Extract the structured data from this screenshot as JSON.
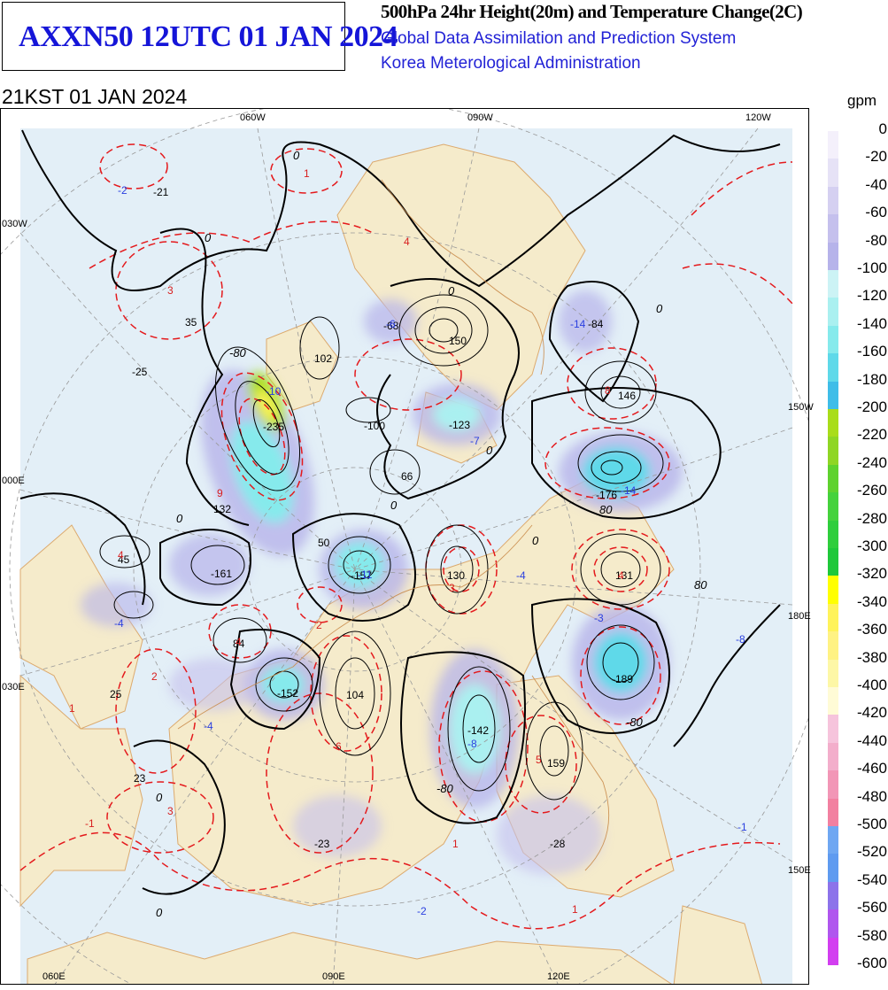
{
  "header": {
    "product": "AXXN50 12UTC 01 JAN 2024",
    "title": "500hPa 24hr Height(20m) and Temperature Change(2C)",
    "system": "Global Data Assimilation and Prediction System",
    "agency": "Korea Meterological Administration",
    "valid_time": "21KST 01 JAN 2024"
  },
  "legend": {
    "unit": "gpm",
    "items": [
      {
        "label": "0",
        "color": "#f4f0fb"
      },
      {
        "label": "-20",
        "color": "#e6e2f6"
      },
      {
        "label": "-40",
        "color": "#d5d0f1"
      },
      {
        "label": "-60",
        "color": "#c5c0ed"
      },
      {
        "label": "-80",
        "color": "#b6b3ea"
      },
      {
        "label": "-100",
        "color": "#ccf3f5"
      },
      {
        "label": "-120",
        "color": "#aaf0f0"
      },
      {
        "label": "-140",
        "color": "#86eaec"
      },
      {
        "label": "-160",
        "color": "#5fd9e9"
      },
      {
        "label": "-180",
        "color": "#3fbde8"
      },
      {
        "label": "-200",
        "color": "#a9dd1a"
      },
      {
        "label": "-220",
        "color": "#8fd624"
      },
      {
        "label": "-240",
        "color": "#5fd22e"
      },
      {
        "label": "-260",
        "color": "#45d23c"
      },
      {
        "label": "-280",
        "color": "#2fce3c"
      },
      {
        "label": "-300",
        "color": "#1fc83a"
      },
      {
        "label": "-320",
        "color": "#ffff00"
      },
      {
        "label": "-340",
        "color": "#fff35a"
      },
      {
        "label": "-360",
        "color": "#fff283"
      },
      {
        "label": "-380",
        "color": "#fdf7a6"
      },
      {
        "label": "-400",
        "color": "#fffbd6"
      },
      {
        "label": "-420",
        "color": "#f6c4dc"
      },
      {
        "label": "-440",
        "color": "#f3aecb"
      },
      {
        "label": "-460",
        "color": "#f296b6"
      },
      {
        "label": "-480",
        "color": "#f280a0"
      },
      {
        "label": "-500",
        "color": "#6fa7f2"
      },
      {
        "label": "-520",
        "color": "#5f9bf0"
      },
      {
        "label": "-540",
        "color": "#8c73ea"
      },
      {
        "label": "-560",
        "color": "#b056ee"
      },
      {
        "label": "-580",
        "color": "#d23ef0"
      },
      {
        "label": "-600",
        "color": "#ee24ee"
      }
    ]
  },
  "grid_labels": {
    "top": [
      "060W",
      "090W",
      "120W"
    ],
    "left": [
      "030W",
      "000E",
      "030E"
    ],
    "right": [
      "150W",
      "180E",
      "150E"
    ],
    "bottom": [
      "060E",
      "090E",
      "120E"
    ]
  },
  "height_centers": [
    {
      "v": "-21"
    },
    {
      "v": "35"
    },
    {
      "v": "-25"
    },
    {
      "v": "-235"
    },
    {
      "v": "102"
    },
    {
      "v": "-68"
    },
    {
      "v": "150"
    },
    {
      "v": "-84"
    },
    {
      "v": "146"
    },
    {
      "v": "-100"
    },
    {
      "v": "-123"
    },
    {
      "v": "66"
    },
    {
      "v": "-176"
    },
    {
      "v": "132"
    },
    {
      "v": "50"
    },
    {
      "v": "-157"
    },
    {
      "v": "130"
    },
    {
      "v": "131"
    },
    {
      "v": "45"
    },
    {
      "v": "-161"
    },
    {
      "v": "84"
    },
    {
      "v": "-189"
    },
    {
      "v": "-152"
    },
    {
      "v": "104"
    },
    {
      "v": "25"
    },
    {
      "v": "-142"
    },
    {
      "v": "159"
    },
    {
      "v": "23"
    },
    {
      "v": "-23"
    },
    {
      "v": "-28"
    }
  ],
  "temp_centers": [
    {
      "v": "-2",
      "c": "blue"
    },
    {
      "v": "1",
      "c": "red"
    },
    {
      "v": "3",
      "c": "red"
    },
    {
      "v": "4",
      "c": "red"
    },
    {
      "v": "-10",
      "c": "blue"
    },
    {
      "v": "-6",
      "c": "blue"
    },
    {
      "v": "-14",
      "c": "blue"
    },
    {
      "v": "8",
      "c": "red"
    },
    {
      "v": "-7",
      "c": "blue"
    },
    {
      "v": "-14",
      "c": "blue"
    },
    {
      "v": "9",
      "c": "red"
    },
    {
      "v": "-11",
      "c": "blue"
    },
    {
      "v": "3",
      "c": "red"
    },
    {
      "v": "-4",
      "c": "blue"
    },
    {
      "v": "4",
      "c": "red"
    },
    {
      "v": "4",
      "c": "red"
    },
    {
      "v": "4",
      "c": "red"
    },
    {
      "v": "-4",
      "c": "blue"
    },
    {
      "v": "2",
      "c": "red"
    },
    {
      "v": "-3",
      "c": "blue"
    },
    {
      "v": "-8",
      "c": "blue"
    },
    {
      "v": "1",
      "c": "red"
    },
    {
      "v": "2",
      "c": "red"
    },
    {
      "v": "-4",
      "c": "blue"
    },
    {
      "v": "6",
      "c": "red"
    },
    {
      "v": "-8",
      "c": "blue"
    },
    {
      "v": "5",
      "c": "red"
    },
    {
      "v": "3",
      "c": "red"
    },
    {
      "v": "-1",
      "c": "red"
    },
    {
      "v": "1",
      "c": "red"
    },
    {
      "v": "-2",
      "c": "blue"
    },
    {
      "v": "1",
      "c": "red"
    },
    {
      "v": "-1",
      "c": "blue"
    }
  ],
  "contour_labels": [
    {
      "v": "0"
    },
    {
      "v": "0"
    },
    {
      "v": "0"
    },
    {
      "v": "0"
    },
    {
      "v": "0"
    },
    {
      "v": "0"
    },
    {
      "v": "0"
    },
    {
      "v": "0"
    },
    {
      "v": "-80"
    },
    {
      "v": "80"
    },
    {
      "v": "80"
    },
    {
      "v": "-80"
    },
    {
      "v": "-80"
    },
    {
      "v": "0"
    },
    {
      "v": "0"
    }
  ]
}
